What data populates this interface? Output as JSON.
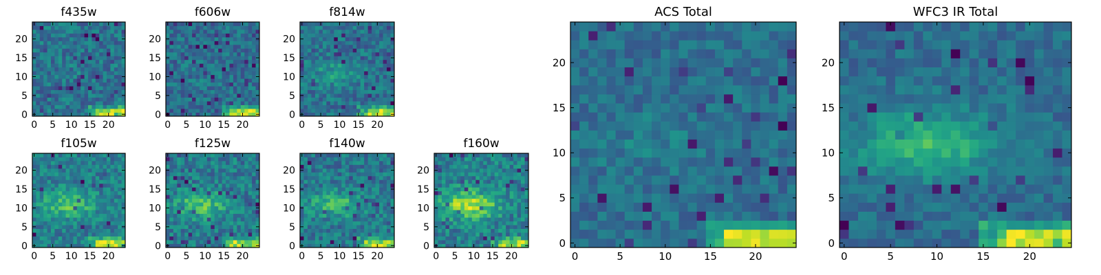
{
  "chart_data": [
    {
      "type": "heatmap",
      "title": "f435w",
      "colormap": "viridis",
      "xlim": [
        -0.5,
        24.5
      ],
      "ylim": [
        -0.5,
        24.5
      ],
      "xticks": [
        0,
        5,
        10,
        15,
        20
      ],
      "yticks": [
        0,
        5,
        10,
        15,
        20
      ],
      "grid": false,
      "seed": 11,
      "noise": 0.55,
      "blob": 0.05,
      "corner": 0.95,
      "dark": 0.05
    },
    {
      "type": "heatmap",
      "title": "f606w",
      "colormap": "viridis",
      "xlim": [
        -0.5,
        24.5
      ],
      "ylim": [
        -0.5,
        24.5
      ],
      "xticks": [
        0,
        5,
        10,
        15,
        20
      ],
      "yticks": [
        0,
        5,
        10,
        15,
        20
      ],
      "grid": false,
      "seed": 23,
      "noise": 0.5,
      "blob": 0.05,
      "corner": 0.95,
      "dark": 0.07
    },
    {
      "type": "heatmap",
      "title": "f814w",
      "colormap": "viridis",
      "xlim": [
        -0.5,
        24.5
      ],
      "ylim": [
        -0.5,
        24.5
      ],
      "xticks": [
        0,
        5,
        10,
        15,
        20
      ],
      "yticks": [
        0,
        5,
        10,
        15,
        20
      ],
      "grid": false,
      "seed": 37,
      "noise": 0.5,
      "blob": 0.3,
      "corner": 0.9,
      "dark": 0.05
    },
    {
      "type": "heatmap",
      "title": "f105w",
      "colormap": "viridis",
      "xlim": [
        -0.5,
        24.5
      ],
      "ylim": [
        -0.5,
        24.5
      ],
      "xticks": [
        0,
        5,
        10,
        15,
        20
      ],
      "yticks": [
        0,
        5,
        10,
        15,
        20
      ],
      "grid": false,
      "seed": 41,
      "noise": 0.45,
      "blob": 0.45,
      "corner": 0.7,
      "dark": 0.03
    },
    {
      "type": "heatmap",
      "title": "f125w",
      "colormap": "viridis",
      "xlim": [
        -0.5,
        24.5
      ],
      "ylim": [
        -0.5,
        24.5
      ],
      "xticks": [
        0,
        5,
        10,
        15,
        20
      ],
      "yticks": [
        0,
        5,
        10,
        15,
        20
      ],
      "grid": false,
      "seed": 53,
      "noise": 0.5,
      "blob": 0.5,
      "corner": 0.7,
      "dark": 0.04
    },
    {
      "type": "heatmap",
      "title": "f140w",
      "colormap": "viridis",
      "xlim": [
        -0.5,
        24.5
      ],
      "ylim": [
        -0.5,
        24.5
      ],
      "xticks": [
        0,
        5,
        10,
        15,
        20
      ],
      "yticks": [
        0,
        5,
        10,
        15,
        20
      ],
      "grid": false,
      "seed": 67,
      "noise": 0.5,
      "blob": 0.45,
      "corner": 0.75,
      "dark": 0.03
    },
    {
      "type": "heatmap",
      "title": "f160w",
      "colormap": "viridis",
      "xlim": [
        -0.5,
        24.5
      ],
      "ylim": [
        -0.5,
        24.5
      ],
      "xticks": [
        0,
        5,
        10,
        15,
        20
      ],
      "yticks": [
        0,
        5,
        10,
        15,
        20
      ],
      "grid": false,
      "seed": 79,
      "noise": 0.45,
      "blob": 0.65,
      "corner": 0.55,
      "dark": 0.03
    },
    {
      "type": "heatmap",
      "title": "ACS Total",
      "colormap": "viridis",
      "xlim": [
        -0.5,
        24.5
      ],
      "ylim": [
        -0.5,
        24.5
      ],
      "xticks": [
        0,
        5,
        10,
        15,
        20
      ],
      "yticks": [
        0,
        5,
        10,
        15,
        20
      ],
      "grid": false,
      "seed": 97,
      "noise": 0.35,
      "blob": 0.12,
      "corner": 1.0,
      "dark": 0.05
    },
    {
      "type": "heatmap",
      "title": "WFC3 IR Total",
      "colormap": "viridis",
      "xlim": [
        -0.5,
        24.5
      ],
      "ylim": [
        -0.5,
        24.5
      ],
      "xticks": [
        0,
        5,
        10,
        15,
        20
      ],
      "yticks": [
        0,
        5,
        10,
        15,
        20
      ],
      "grid": false,
      "seed": 131,
      "noise": 0.3,
      "blob": 0.55,
      "corner": 0.9,
      "dark": 0.04
    }
  ]
}
